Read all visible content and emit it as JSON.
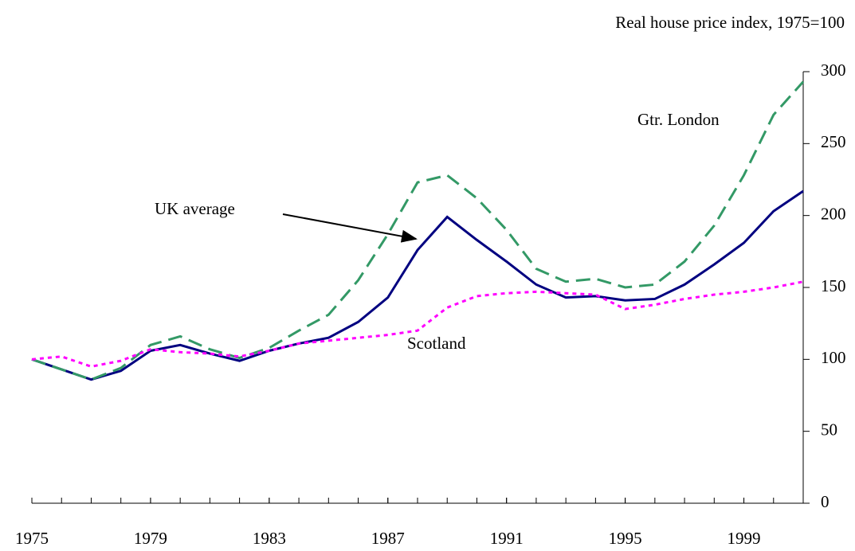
{
  "chart_data": {
    "type": "line",
    "y_axis_label": "Real house price index, 1975=100",
    "x": [
      1975,
      1976,
      1977,
      1978,
      1979,
      1980,
      1981,
      1982,
      1983,
      1984,
      1985,
      1986,
      1987,
      1988,
      1989,
      1990,
      1991,
      1992,
      1993,
      1994,
      1995,
      1996,
      1997,
      1998,
      1999,
      2000,
      2001
    ],
    "series": [
      {
        "name": "UK average",
        "color": "#000080",
        "dash": "solid",
        "values": [
          100,
          93,
          86,
          92,
          106,
          110,
          104,
          99,
          106,
          111,
          115,
          126,
          143,
          176,
          199,
          183,
          168,
          152,
          143,
          144,
          141,
          142,
          152,
          166,
          181,
          203,
          217
        ]
      },
      {
        "name": "Gtr. London",
        "color": "#339966",
        "dash": "dashed",
        "values": [
          100,
          93,
          86,
          94,
          110,
          116,
          107,
          101,
          108,
          120,
          131,
          155,
          187,
          223,
          228,
          212,
          190,
          163,
          154,
          156,
          150,
          152,
          168,
          193,
          228,
          270,
          293
        ]
      },
      {
        "name": "Scotland",
        "color": "#ff00ff",
        "dash": "dotted",
        "values": [
          100,
          102,
          95,
          99,
          107,
          105,
          104,
          102,
          106,
          111,
          113,
          115,
          117,
          120,
          136,
          144,
          146,
          147,
          146,
          145,
          135,
          138,
          142,
          145,
          147,
          150,
          154
        ]
      }
    ],
    "xlim": [
      1975,
      2001
    ],
    "xticks": [
      1975,
      1979,
      1983,
      1987,
      1991,
      1995,
      1999
    ],
    "ylim": [
      0,
      300
    ],
    "yticks": [
      0,
      50,
      100,
      150,
      200,
      250,
      300
    ],
    "y_axis_side": "right",
    "grid": false
  }
}
